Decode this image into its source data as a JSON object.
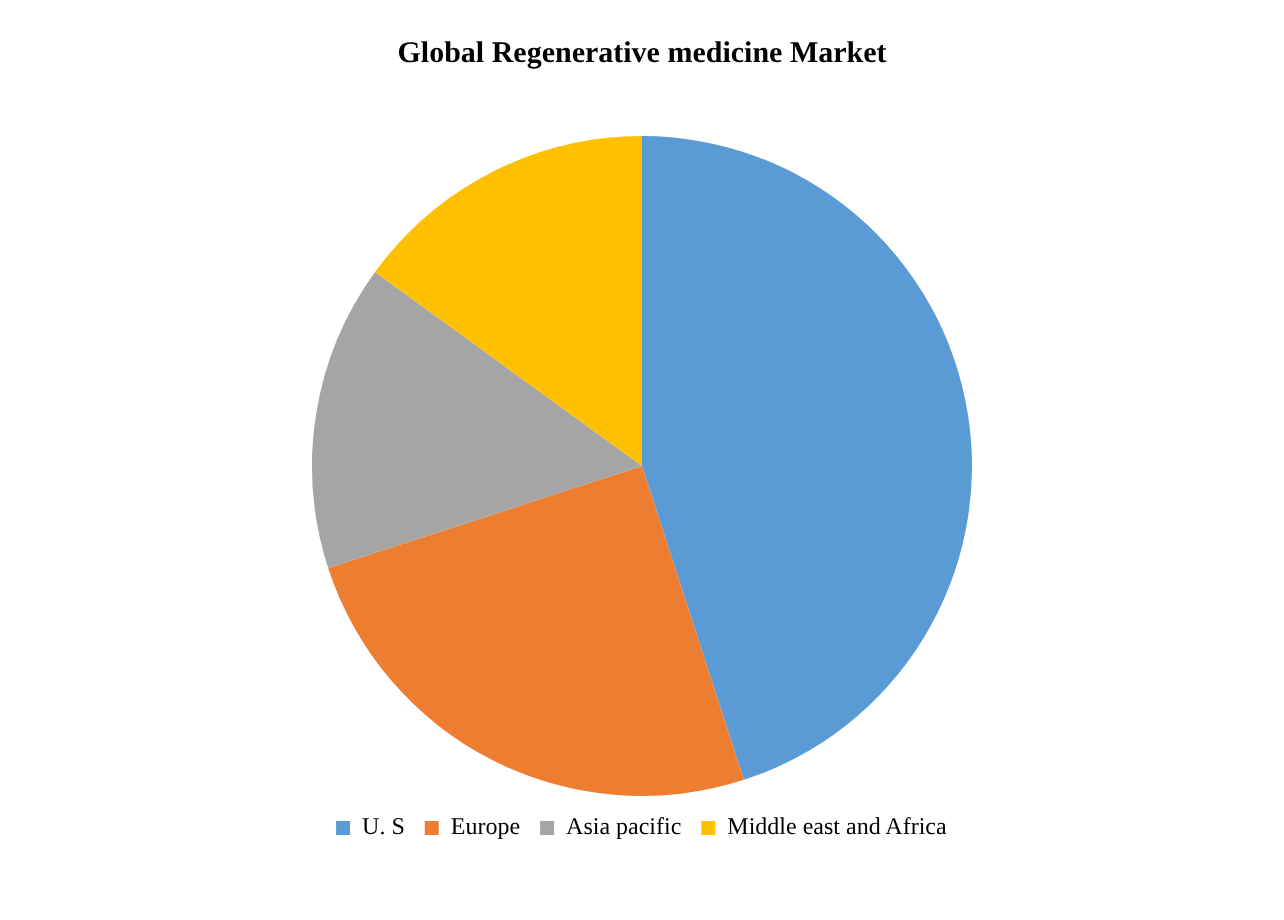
{
  "chart_data": {
    "type": "pie",
    "title": "Global Regenerative medicine Market",
    "categories": [
      "U. S",
      "Europe",
      "Asia pacific",
      "Middle east and Africa"
    ],
    "values": [
      45,
      25,
      15,
      15
    ],
    "colors": [
      "#5b9bd5",
      "#ed7d31",
      "#a5a5a5",
      "#ffc000"
    ],
    "legend": "bottom"
  }
}
